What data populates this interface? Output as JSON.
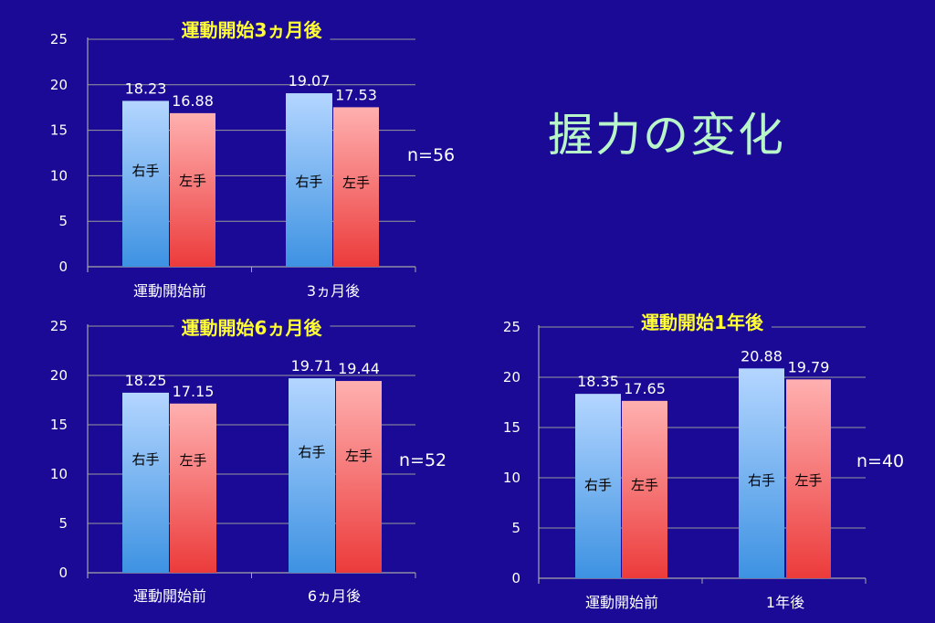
{
  "slide": {
    "title": "握力の変化",
    "background": "#1a0a96",
    "title_color": "#b8f5c8",
    "chart_title_color": "#ffff33",
    "right_color": "#5aa0f0",
    "left_color": "#f06060"
  },
  "chart_data": [
    {
      "type": "bar",
      "title": "運動開始3ヵ月後",
      "categories": [
        "運動開始前",
        "3ヵ月後"
      ],
      "series": [
        {
          "name": "右手",
          "values": [
            18.23,
            19.07
          ]
        },
        {
          "name": "左手",
          "values": [
            16.88,
            17.53
          ]
        }
      ],
      "value_labels": [
        [
          "18.23",
          "19.07"
        ],
        [
          "16.88",
          "17.53"
        ]
      ],
      "ylim": [
        0,
        25
      ],
      "yticks": [
        "0",
        "5",
        "10",
        "15",
        "20",
        "25"
      ],
      "grid": true,
      "note": "n=56"
    },
    {
      "type": "bar",
      "title": "運動開始6ヵ月後",
      "categories": [
        "運動開始前",
        "6ヵ月後"
      ],
      "series": [
        {
          "name": "右手",
          "values": [
            18.25,
            19.71
          ]
        },
        {
          "name": "左手",
          "values": [
            17.15,
            19.44
          ]
        }
      ],
      "value_labels": [
        [
          "18.25",
          "19.71"
        ],
        [
          "17.15",
          "19.44"
        ]
      ],
      "ylim": [
        0,
        25
      ],
      "yticks": [
        "0",
        "5",
        "10",
        "15",
        "20",
        "25"
      ],
      "grid": true,
      "note": "n=52"
    },
    {
      "type": "bar",
      "title": "運動開始1年後",
      "categories": [
        "運動開始前",
        "1年後"
      ],
      "series": [
        {
          "name": "右手",
          "values": [
            18.35,
            20.88
          ]
        },
        {
          "name": "左手",
          "values": [
            17.65,
            19.79
          ]
        }
      ],
      "value_labels": [
        [
          "18.35",
          "20.88"
        ],
        [
          "17.65",
          "19.79"
        ]
      ],
      "ylim": [
        0,
        25
      ],
      "yticks": [
        "0",
        "5",
        "10",
        "15",
        "20",
        "25"
      ],
      "grid": true,
      "note": "n=40"
    }
  ]
}
